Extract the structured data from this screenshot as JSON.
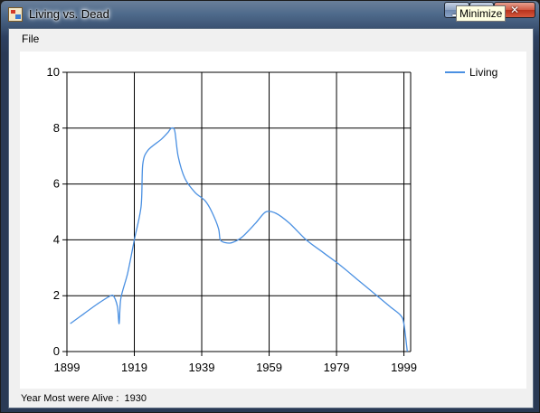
{
  "window": {
    "title": "Living vs. Dead",
    "icon": "app-icon"
  },
  "menu": {
    "file_label": "File"
  },
  "tooltip": {
    "text": "Minimize"
  },
  "status": {
    "label": "Year Most were Alive :",
    "value": "1930"
  },
  "chart_data": {
    "type": "line",
    "xlim": [
      1899,
      2001
    ],
    "ylim": [
      0,
      10
    ],
    "x_ticks": [
      1899,
      1919,
      1939,
      1959,
      1979,
      1999
    ],
    "x_tick_labels": [
      "1899",
      "1919",
      "1939",
      "1959",
      "1979",
      "1999"
    ],
    "y_ticks": [
      0,
      2,
      4,
      6,
      8,
      10
    ],
    "y_tick_labels": [
      "0",
      "2",
      "4",
      "6",
      "8",
      "10"
    ],
    "grid": true,
    "legend_position": "top-right",
    "series": [
      {
        "name": "Living",
        "color": "#4a90e2",
        "x": [
          1900,
          1904,
          1908,
          1912,
          1913,
          1914,
          1914.5,
          1915,
          1917,
          1919,
          1921,
          1921.5,
          1923,
          1927,
          1929,
          1930,
          1931,
          1932,
          1934,
          1937,
          1940,
          1942,
          1944,
          1944.5,
          1946,
          1948,
          1951,
          1955,
          1958,
          1961,
          1965,
          1970,
          1975,
          1980,
          1985,
          1990,
          1995,
          1998,
          1999,
          2000
        ],
        "y": [
          1.0,
          1.35,
          1.7,
          2.0,
          1.95,
          1.6,
          1.0,
          1.9,
          2.8,
          4.0,
          5.2,
          6.7,
          7.2,
          7.6,
          7.85,
          8.0,
          7.9,
          7.0,
          6.2,
          5.7,
          5.4,
          5.0,
          4.4,
          4.0,
          3.9,
          3.9,
          4.1,
          4.6,
          5.0,
          4.95,
          4.6,
          4.0,
          3.55,
          3.1,
          2.6,
          2.1,
          1.6,
          1.3,
          1.0,
          0.0
        ]
      }
    ]
  }
}
